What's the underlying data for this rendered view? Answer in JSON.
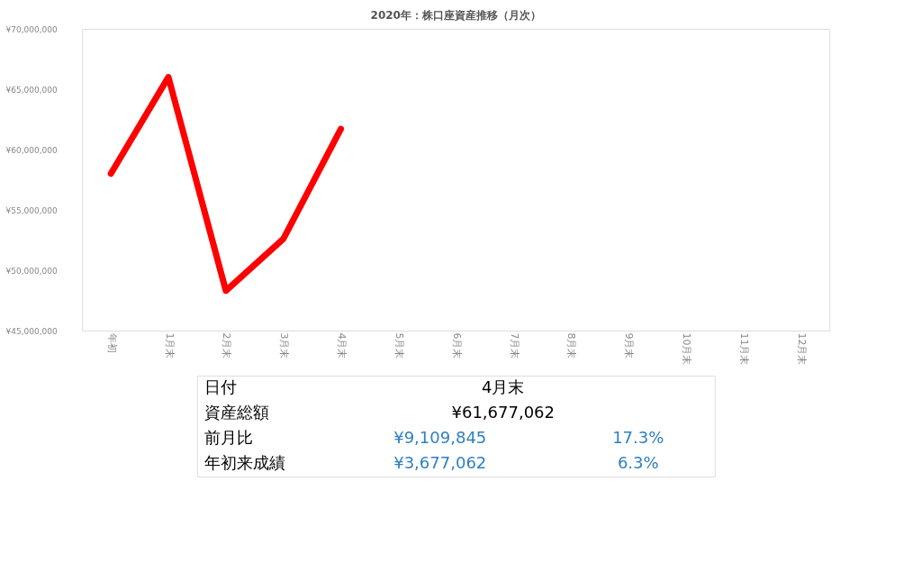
{
  "chart_data": {
    "type": "line",
    "title": "2020年：株口座資産推移（月次）",
    "categories": [
      "年初",
      "1月末",
      "2月末",
      "3月末",
      "4月末",
      "5月末",
      "6月末",
      "7月末",
      "8月末",
      "9月末",
      "10月末",
      "11月末",
      "12月末"
    ],
    "series": [
      {
        "color": "#ff0000",
        "values": [
          58000000,
          66000000,
          48300000,
          52600000,
          61700000,
          null,
          null,
          null,
          null,
          null,
          null,
          null,
          null
        ]
      }
    ],
    "ylim": [
      45000000,
      70000000
    ],
    "yticks": [
      {
        "value": 45000000,
        "label": "¥45,000,000"
      },
      {
        "value": 50000000,
        "label": "¥50,000,000"
      },
      {
        "value": 55000000,
        "label": "¥55,000,000"
      },
      {
        "value": 60000000,
        "label": "¥60,000,000"
      },
      {
        "value": 65000000,
        "label": "¥65,000,000"
      },
      {
        "value": 70000000,
        "label": "¥70,000,000"
      }
    ],
    "grid": false,
    "legend": false,
    "marker": "none",
    "line_style": "solid",
    "annotations": [
      "日付",
      "4月末",
      "資産総額",
      "¥61,677,062",
      "前月比",
      "¥9,109,845",
      "17.3%",
      "年初来成績",
      "¥3,677,062",
      "6.3%"
    ]
  }
}
